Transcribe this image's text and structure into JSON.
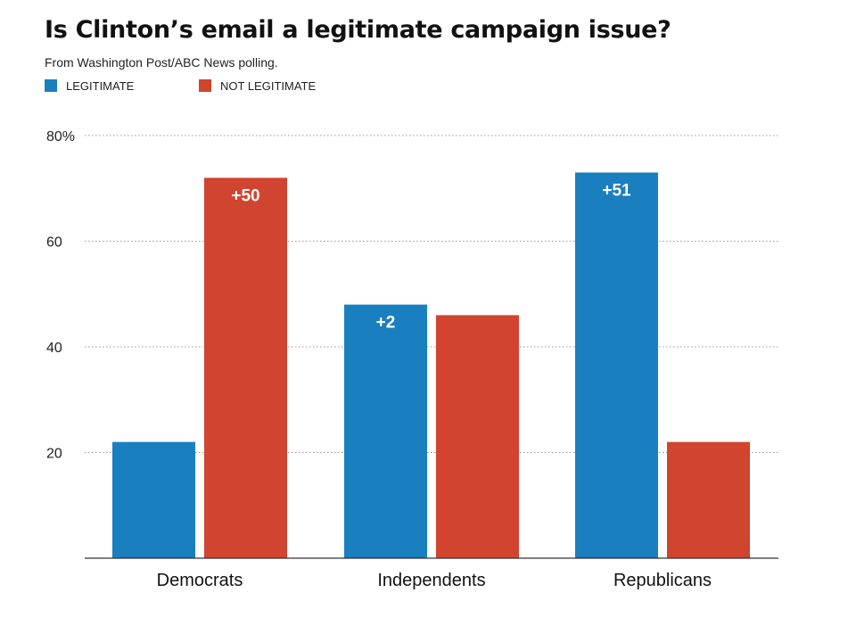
{
  "chart_data": {
    "type": "bar",
    "title": "Is Clinton’s email a legitimate campaign issue?",
    "subtitle": "From Washington Post/ABC News polling.",
    "categories": [
      "Democrats",
      "Independents",
      "Republicans"
    ],
    "series": [
      {
        "name": "LEGITIMATE",
        "color": "#1a7fbf",
        "values": [
          22,
          48,
          73
        ]
      },
      {
        "name": "NOT LEGITIMATE",
        "color": "#d14430",
        "values": [
          72,
          46,
          22
        ]
      }
    ],
    "ylim": [
      0,
      80
    ],
    "yticks": [
      20,
      40,
      60,
      80
    ],
    "ytick_labels": [
      "20",
      "40",
      "60",
      "80%"
    ],
    "grid": true,
    "legend": "top-left",
    "annotations": [
      {
        "category": "Democrats",
        "series": "NOT LEGITIMATE",
        "text": "+50"
      },
      {
        "category": "Independents",
        "series": "LEGITIMATE",
        "text": "+2"
      },
      {
        "category": "Republicans",
        "series": "LEGITIMATE",
        "text": "+51"
      }
    ]
  }
}
